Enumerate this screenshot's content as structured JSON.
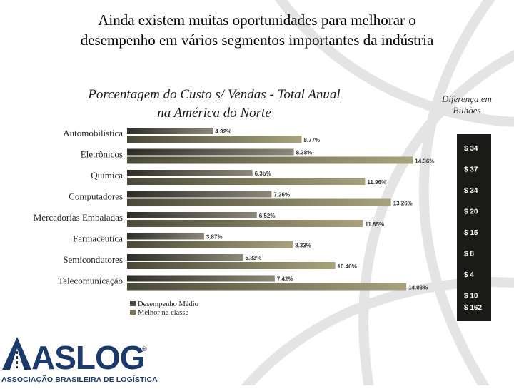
{
  "slide": {
    "title_line1": "Ainda existem muitas oportunidades para melhorar o",
    "title_line2": "desempenho em vários segmentos importantes da indústria",
    "subtitle_line1": "Porcentagem do Custo s/ Vendas - Total Anual",
    "subtitle_line2": "na América do Norte",
    "diff_header_line1": "Diferença em",
    "diff_header_line2": "Bilhões"
  },
  "chart_data": {
    "type": "bar",
    "orientation": "horizontal",
    "categories": [
      "Automobilística",
      "Eletrônicos",
      "Química",
      "Computadores",
      "Mercadorias Embaladas",
      "Farmacêutica",
      "Semicondutores",
      "Telecomunicação"
    ],
    "series": [
      {
        "name": "Desempenho Médio",
        "values": [
          4.32,
          8.38,
          6.3,
          7.26,
          6.52,
          3.87,
          5.83,
          7.42
        ],
        "labels": [
          "4.32%",
          "8.38%",
          "6.3b%",
          "7.26%",
          "6.52%",
          "3.87%",
          "5.83%",
          "7.42%"
        ],
        "color": "#4a4a40"
      },
      {
        "name": "Melhor na classe",
        "values": [
          8.77,
          14.36,
          11.96,
          13.26,
          11.85,
          8.33,
          10.46,
          14.03
        ],
        "labels": [
          "8.77%",
          "14.36%",
          "11.96%",
          "13.26%",
          "11.85%",
          "8.33%",
          "10.46%",
          "14.03%"
        ],
        "color": "#7a7558"
      }
    ],
    "xlim": [
      0,
      14.6
    ],
    "difference_column": [
      "$ 34",
      "$ 37",
      "$ 34",
      "$ 20",
      "$ 15",
      "$ 8",
      "$ 4",
      "$ 10"
    ],
    "difference_total": "$ 162",
    "legend_position": "bottom-left",
    "grid": false
  },
  "logo": {
    "text": "ASLOG",
    "registered": "®",
    "subtext": "ASSOCIAÇÃO BRASILEIRA DE LOGÍSTICA"
  },
  "colors": {
    "bar_dark": "#4a4a40",
    "bar_light": "#7a7558",
    "panel": "#1a1a16",
    "logo_blue": "#1b3a6b"
  }
}
